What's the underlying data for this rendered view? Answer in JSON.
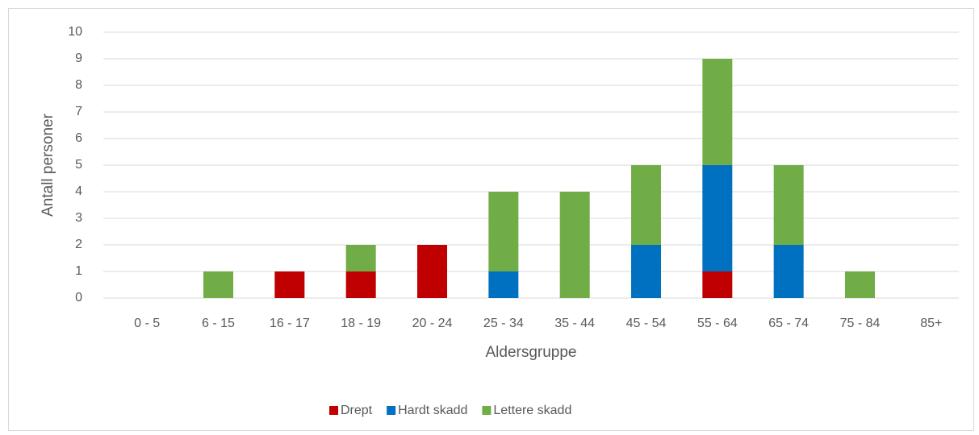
{
  "chart_data": {
    "type": "stacked_bar",
    "xlabel": "Aldersgruppe",
    "ylabel": "Antall personer",
    "categories": [
      "0 - 5",
      "6 - 15",
      "16 - 17",
      "18 - 19",
      "20 - 24",
      "25 - 34",
      "35 - 44",
      "45 - 54",
      "55 - 64",
      "65 - 74",
      "75 - 84",
      "85+"
    ],
    "series": [
      {
        "name": "Drept",
        "color": "#c00000",
        "values": [
          0,
          0,
          1,
          1,
          2,
          0,
          0,
          0,
          1,
          0,
          0,
          0
        ]
      },
      {
        "name": "Hardt skadd",
        "color": "#0070c0",
        "values": [
          0,
          0,
          0,
          0,
          0,
          1,
          0,
          2,
          4,
          2,
          0,
          0
        ]
      },
      {
        "name": "Lettere skadd",
        "color": "#70ad47",
        "values": [
          0,
          1,
          0,
          1,
          0,
          3,
          4,
          3,
          4,
          3,
          1,
          0
        ]
      }
    ],
    "ylim": [
      0,
      10
    ],
    "yticks": [
      0,
      1,
      2,
      3,
      4,
      5,
      6,
      7,
      8,
      9,
      10
    ],
    "grid": true,
    "legend": "bottom"
  }
}
